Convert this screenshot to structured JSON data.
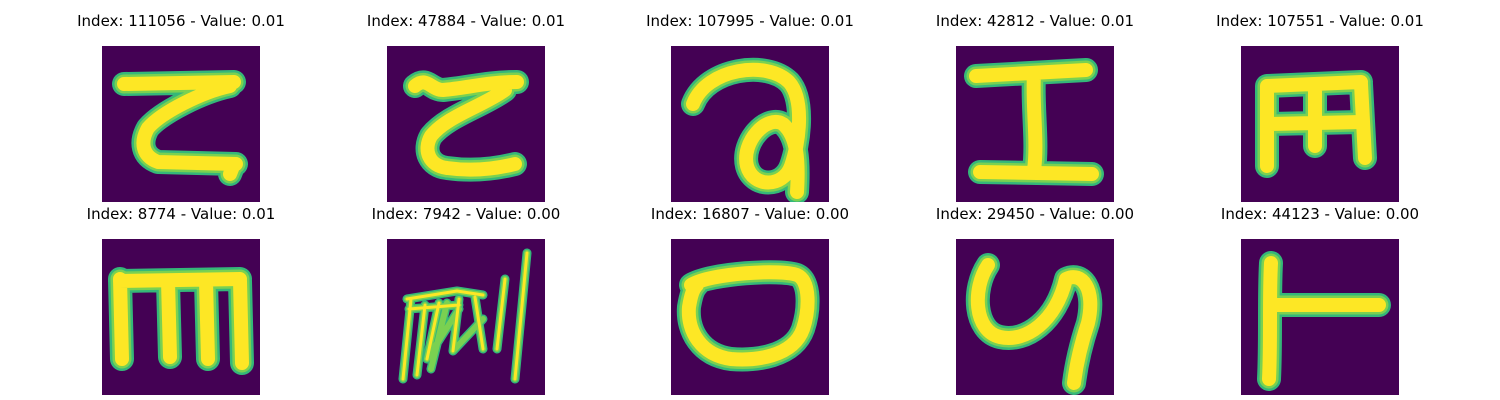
{
  "colors": {
    "background": "#440154",
    "stroke_edge": "#35b779",
    "stroke_mid": "#7ad151",
    "stroke_core": "#fde725"
  },
  "panels": [
    {
      "title": "Index: 111056 - Value: 0.01",
      "glyph": "z-shape"
    },
    {
      "title": "Index: 47884 - Value: 0.01",
      "glyph": "curly-z-shape"
    },
    {
      "title": "Index: 107995 - Value: 0.01",
      "glyph": "loop-a-shape"
    },
    {
      "title": "Index: 42812 - Value: 0.01",
      "glyph": "i-beam-shape"
    },
    {
      "title": "Index: 107551 - Value: 0.01",
      "glyph": "m-comb-shape"
    },
    {
      "title": "Index: 8774 - Value: 0.01",
      "glyph": "m-shape"
    },
    {
      "title": "Index: 7942 - Value: 0.00",
      "glyph": "scribble-shape"
    },
    {
      "title": "Index: 16807 - Value: 0.00",
      "glyph": "o-shape"
    },
    {
      "title": "Index: 29450 - Value: 0.00",
      "glyph": "y-shape"
    },
    {
      "title": "Index: 44123 - Value: 0.00",
      "glyph": "t-shape"
    }
  ]
}
